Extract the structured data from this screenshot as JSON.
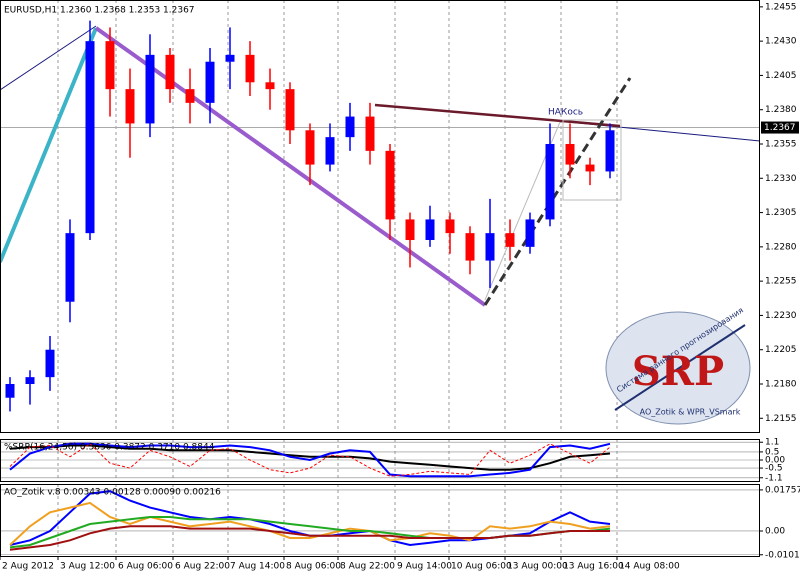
{
  "chart_data": [
    {
      "type": "candlestick",
      "title": "EURUSD,H1  1.2360 1.2368 1.2353 1.2367",
      "categories": [
        null,
        null,
        null,
        null,
        null,
        null,
        null,
        null,
        null,
        null,
        null,
        null,
        null,
        null,
        null,
        null,
        null,
        null,
        null,
        null,
        null,
        null,
        null,
        null,
        null,
        null,
        null,
        null,
        null,
        null,
        null
      ],
      "open": [
        1.217,
        1.218,
        1.2185,
        1.224,
        1.229,
        1.243,
        1.2395,
        1.237,
        1.242,
        1.2395,
        1.2385,
        1.2415,
        1.242,
        1.24,
        1.2395,
        1.2365,
        1.234,
        1.236,
        1.2375,
        1.235,
        1.23,
        1.2285,
        1.23,
        1.229,
        1.227,
        1.229,
        1.228,
        1.23,
        1.2355,
        1.234,
        1.2335
      ],
      "high": [
        1.2185,
        1.219,
        1.2215,
        1.23,
        1.2445,
        1.244,
        1.241,
        1.2435,
        1.2425,
        1.241,
        1.2425,
        1.244,
        1.243,
        1.241,
        1.24,
        1.237,
        1.237,
        1.2385,
        1.2385,
        1.2355,
        1.2305,
        1.231,
        1.2305,
        1.2295,
        1.2315,
        1.23,
        1.2305,
        1.237,
        1.237,
        1.2345,
        1.237
      ],
      "low": [
        1.216,
        1.2165,
        1.2175,
        1.2225,
        1.2285,
        1.2375,
        1.2345,
        1.236,
        1.2385,
        1.237,
        1.237,
        1.2395,
        1.239,
        1.238,
        1.2355,
        1.2325,
        1.2335,
        1.235,
        1.234,
        1.2285,
        1.2265,
        1.228,
        1.2275,
        1.226,
        1.225,
        1.227,
        1.2275,
        1.2295,
        1.233,
        1.2325,
        1.233
      ],
      "close": [
        1.218,
        1.2185,
        1.2205,
        1.229,
        1.243,
        1.2395,
        1.237,
        1.242,
        1.2395,
        1.2385,
        1.2415,
        1.242,
        1.24,
        1.2395,
        1.2365,
        1.234,
        1.236,
        1.2375,
        1.235,
        1.23,
        1.2285,
        1.23,
        1.229,
        1.227,
        1.229,
        1.228,
        1.23,
        1.2355,
        1.234,
        1.2335,
        1.2365
      ],
      "up_color": "#0000ff",
      "down_color": "#ff0000",
      "current_price": 1.2367,
      "ylim": [
        1.2145,
        1.246
      ],
      "yticks": [
        1.2455,
        {
          "value": 1.243,
          "label": "1.2430"
        },
        1.2405,
        {
          "value": 1.238,
          "label": "1.2380"
        },
        1.2355,
        {
          "value": 1.233,
          "label": "1.2330"
        },
        1.2305,
        {
          "value": 1.228,
          "label": "1.2280"
        },
        1.2255,
        {
          "value": 1.223,
          "label": "1.2230"
        },
        1.2205,
        {
          "value": 1.218,
          "label": "1.2180"
        },
        1.2155
      ],
      "xlim": [
        -0.5,
        37.5
      ],
      "xticks": [
        {
          "value": -0.5,
          "label": "2 Aug 2012"
        },
        {
          "value": 2.4,
          "label": "3 Aug 12:00"
        },
        {
          "value": 5.3,
          "label": "6 Aug 06:00"
        },
        {
          "value": 8.15,
          "label": "6 Aug 22:00"
        },
        {
          "value": 10.9,
          "label": "7 Aug 14:00"
        },
        {
          "value": 13.7,
          "label": "8 Aug 06:00"
        },
        {
          "value": 16.4,
          "label": "8 Aug 22:00"
        },
        {
          "value": 19.25,
          "label": "9 Aug 14:00"
        },
        {
          "value": 21.95,
          "label": "10 Aug 06:00"
        },
        {
          "value": 24.75,
          "label": "13 Aug 00:00"
        },
        {
          "value": 27.55,
          "label": "13 Aug 16:00"
        },
        {
          "value": 30.35,
          "label": "14 Aug 08:00"
        }
      ],
      "annotations": [
        "НАКось",
        "SRP",
        "Система раннего прогнозирования",
        "AO_Zotik & WPR_VSmark"
      ]
    },
    {
      "type": "line",
      "title": "%SRP(16,24,56) 0.3636 0.3872 0.3710 0.8844",
      "ylim": [
        -1.3,
        1.3
      ],
      "yticks": [
        1.1,
        0.5,
        {
          "value": 0,
          "label": "0.00"
        },
        -0.5,
        -1.1
      ],
      "series": [
        {
          "color": "#000000",
          "values": [
            0.7,
            0.8,
            0.8,
            0.9,
            0.9,
            0.8,
            0.7,
            0.7,
            0.6,
            0.6,
            0.6,
            0.6,
            0.5,
            0.4,
            0.3,
            0.2,
            0.2,
            0.2,
            0.1,
            -0.1,
            -0.2,
            -0.3,
            -0.4,
            -0.5,
            -0.6,
            -0.6,
            -0.5,
            -0.2,
            0.2,
            0.3,
            0.4
          ]
        },
        {
          "color": "#0000ff",
          "values": [
            -0.6,
            0.4,
            0.8,
            1.0,
            1.0,
            0.9,
            0.8,
            0.9,
            0.9,
            0.8,
            0.8,
            0.9,
            0.8,
            0.6,
            0.2,
            0.0,
            0.4,
            0.6,
            0.5,
            -0.9,
            -1.0,
            -1.0,
            -1.0,
            -1.0,
            -0.9,
            -0.8,
            -0.6,
            0.8,
            0.9,
            0.7,
            1.0
          ]
        },
        {
          "color": "#ff0000",
          "dashed": true,
          "values": [
            -0.4,
            0.8,
            0.9,
            0.2,
            1.0,
            -0.2,
            -0.5,
            0.6,
            0.2,
            -0.4,
            0.6,
            0.7,
            0.0,
            -0.6,
            -0.8,
            -0.5,
            0.3,
            0.2,
            -0.5,
            -1.0,
            -0.9,
            -0.7,
            -0.8,
            -0.9,
            0.6,
            -0.2,
            0.3,
            1.0,
            0.4,
            -0.2,
            0.8
          ]
        }
      ]
    },
    {
      "type": "line",
      "title": "AO_Zotik v.8 0.00343 0.00128 0.00090 0.00216",
      "ylim": [
        -0.0107,
        0.0201
      ],
      "yticks": [
        0.01757,
        {
          "value": 0,
          "label": "0.00"
        },
        -0.01017
      ],
      "series": [
        {
          "color": "#0000ff",
          "values": [
            -0.006,
            -0.004,
            0.0,
            0.008,
            0.016,
            0.017,
            0.013,
            0.01,
            0.008,
            0.006,
            0.005,
            0.006,
            0.005,
            0.003,
            0.0,
            -0.002,
            -0.002,
            -0.001,
            0.0,
            -0.004,
            -0.006,
            -0.005,
            -0.004,
            -0.004,
            -0.003,
            -0.002,
            -0.001,
            0.004,
            0.008,
            0.004,
            0.003
          ]
        },
        {
          "color": "#f0a020",
          "values": [
            -0.006,
            0.002,
            0.008,
            0.01,
            0.012,
            0.006,
            0.003,
            0.006,
            0.004,
            0.002,
            0.003,
            0.004,
            0.002,
            0.0,
            -0.003,
            -0.003,
            -0.001,
            0.001,
            0.0,
            -0.004,
            -0.003,
            -0.001,
            -0.002,
            -0.004,
            0.002,
            0.001,
            0.002,
            0.004,
            0.003,
            0.001,
            0.002
          ]
        },
        {
          "color": "#22aa22",
          "values": [
            -0.007,
            -0.006,
            -0.003,
            0.0,
            0.003,
            0.004,
            0.005,
            0.006,
            0.006,
            0.005,
            0.005,
            0.005,
            0.005,
            0.004,
            0.003,
            0.002,
            0.001,
            0.0,
            0.0,
            -0.001,
            -0.002,
            -0.003,
            -0.003,
            -0.003,
            -0.003,
            -0.002,
            -0.002,
            -0.001,
            0.0,
            0.0,
            0.001
          ]
        },
        {
          "color": "#a01010",
          "values": [
            -0.008,
            -0.007,
            -0.006,
            -0.004,
            -0.001,
            0.001,
            0.002,
            0.002,
            0.002,
            0.001,
            0.001,
            0.001,
            0.001,
            0.0,
            -0.001,
            -0.002,
            -0.002,
            -0.002,
            -0.002,
            -0.002,
            -0.003,
            -0.003,
            -0.003,
            -0.003,
            -0.003,
            -0.002,
            -0.002,
            -0.001,
            0.0,
            0.0,
            0.0
          ]
        }
      ]
    }
  ]
}
